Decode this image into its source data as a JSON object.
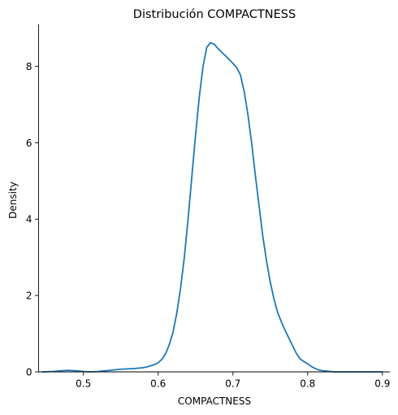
{
  "chart_data": {
    "type": "line",
    "title": "Distribución COMPACTNESS",
    "xlabel": "COMPACTNESS",
    "ylabel": "Density",
    "xlim": [
      0.44,
      0.91
    ],
    "ylim": [
      0,
      9.1
    ],
    "xticks": [
      0.5,
      0.6,
      0.7,
      0.8,
      0.9
    ],
    "yticks": [
      0,
      2,
      4,
      6,
      8
    ],
    "xtick_labels": [
      "0.5",
      "0.6",
      "0.7",
      "0.8",
      "0.9"
    ],
    "ytick_labels": [
      "0",
      "2",
      "4",
      "6",
      "8"
    ],
    "grid": false,
    "series": [
      {
        "color": "#1f77b4",
        "x": [
          0.445,
          0.46,
          0.47,
          0.48,
          0.49,
          0.5,
          0.51,
          0.52,
          0.53,
          0.54,
          0.55,
          0.56,
          0.57,
          0.58,
          0.585,
          0.59,
          0.595,
          0.6,
          0.605,
          0.61,
          0.615,
          0.62,
          0.625,
          0.63,
          0.635,
          0.64,
          0.645,
          0.65,
          0.655,
          0.66,
          0.665,
          0.67,
          0.675,
          0.68,
          0.685,
          0.69,
          0.695,
          0.7,
          0.705,
          0.71,
          0.715,
          0.72,
          0.725,
          0.73,
          0.735,
          0.74,
          0.745,
          0.75,
          0.755,
          0.76,
          0.765,
          0.77,
          0.775,
          0.78,
          0.785,
          0.79,
          0.795,
          0.8,
          0.805,
          0.81,
          0.815,
          0.82,
          0.825,
          0.83,
          0.835,
          0.84,
          0.845,
          0.85,
          0.855,
          0.86,
          0.87,
          0.88,
          0.89,
          0.9
        ],
        "values": [
          0.0,
          0.01,
          0.03,
          0.04,
          0.03,
          0.01,
          0.0,
          0.01,
          0.03,
          0.05,
          0.07,
          0.08,
          0.09,
          0.11,
          0.13,
          0.16,
          0.19,
          0.24,
          0.33,
          0.48,
          0.72,
          1.05,
          1.55,
          2.2,
          3.0,
          4.0,
          5.1,
          6.2,
          7.2,
          8.0,
          8.5,
          8.62,
          8.58,
          8.47,
          8.37,
          8.28,
          8.18,
          8.08,
          7.97,
          7.78,
          7.35,
          6.75,
          6.0,
          5.15,
          4.35,
          3.55,
          2.9,
          2.35,
          1.9,
          1.55,
          1.3,
          1.08,
          0.88,
          0.68,
          0.48,
          0.34,
          0.27,
          0.21,
          0.14,
          0.09,
          0.05,
          0.03,
          0.02,
          0.01,
          0.0,
          0.0,
          0.0,
          0.0,
          0.0,
          0.0,
          0.0,
          0.0,
          0.0,
          0.0
        ]
      }
    ]
  }
}
